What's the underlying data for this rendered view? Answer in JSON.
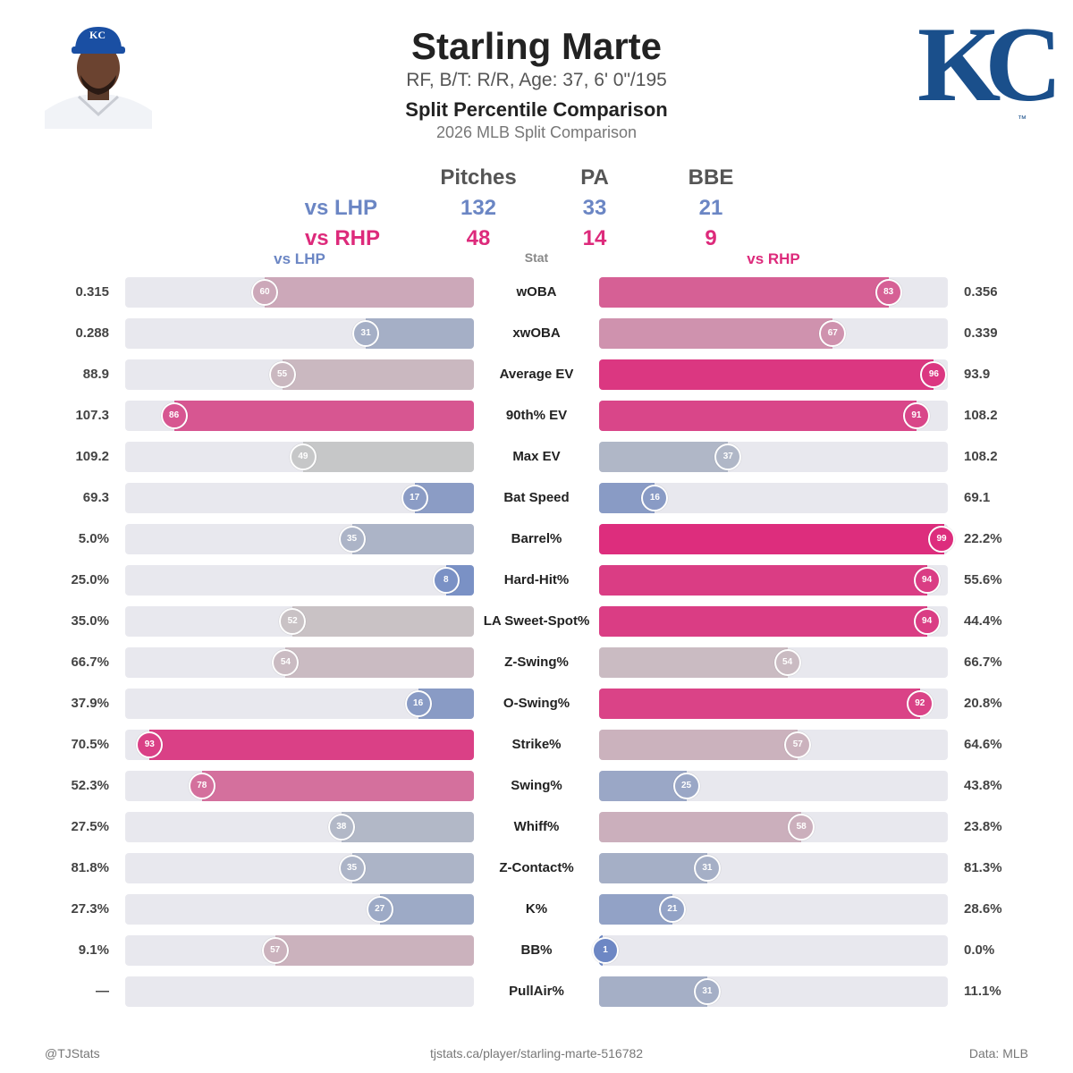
{
  "player": {
    "name": "Starling Marte",
    "subtitle": "RF, B/T: R/R, Age: 37, 6' 0\"/195",
    "heading": "Split Percentile Comparison",
    "season": "2026 MLB Split Comparison",
    "team_logo_text": "KC",
    "trademark": "™"
  },
  "summary": {
    "headers": [
      "Pitches",
      "PA",
      "BBE"
    ],
    "rows": [
      {
        "label": "vs LHP",
        "values": [
          "132",
          "33",
          "21"
        ],
        "color": "#6b86c4"
      },
      {
        "label": "vs RHP",
        "values": [
          "48",
          "14",
          "9"
        ],
        "color": "#dd2a7b"
      }
    ]
  },
  "columns": {
    "left": "vs LHP",
    "center": "Stat",
    "right": "vs RHP"
  },
  "chart_data": {
    "type": "bar",
    "categories": [
      "wOBA",
      "xwOBA",
      "Average EV",
      "90th% EV",
      "Max EV",
      "Bat Speed",
      "Barrel%",
      "Hard-Hit%",
      "LA Sweet-Spot%",
      "Z-Swing%",
      "O-Swing%",
      "Strike%",
      "Swing%",
      "Whiff%",
      "Z-Contact%",
      "K%",
      "BB%",
      "PullAir%"
    ],
    "series": [
      {
        "name": "vs LHP",
        "percentiles": [
          60,
          31,
          55,
          86,
          49,
          17,
          35,
          8,
          52,
          54,
          16,
          93,
          78,
          38,
          35,
          27,
          57,
          null
        ],
        "values": [
          "0.315",
          "0.288",
          "88.9",
          "107.3",
          "109.2",
          "69.3",
          "5.0%",
          "25.0%",
          "35.0%",
          "66.7%",
          "37.9%",
          "70.5%",
          "52.3%",
          "27.5%",
          "81.8%",
          "27.3%",
          "9.1%",
          "—"
        ]
      },
      {
        "name": "vs RHP",
        "percentiles": [
          83,
          67,
          96,
          91,
          37,
          16,
          99,
          94,
          94,
          54,
          92,
          57,
          25,
          58,
          31,
          21,
          1,
          31
        ],
        "values": [
          "0.356",
          "0.339",
          "93.9",
          "108.2",
          "108.2",
          "69.1",
          "22.2%",
          "55.6%",
          "44.4%",
          "66.7%",
          "20.8%",
          "64.6%",
          "43.8%",
          "23.8%",
          "81.3%",
          "28.6%",
          "0.0%",
          "11.1%"
        ]
      }
    ],
    "xlim": [
      0,
      100
    ],
    "colors": {
      "low": "#6b86c4",
      "mid": "#c8c8c8",
      "high": "#dd2a7b",
      "track": "#e8e8ee"
    }
  },
  "footer": {
    "left": "@TJStats",
    "center": "tjstats.ca/player/starling-marte-516782",
    "right": "Data: MLB"
  }
}
